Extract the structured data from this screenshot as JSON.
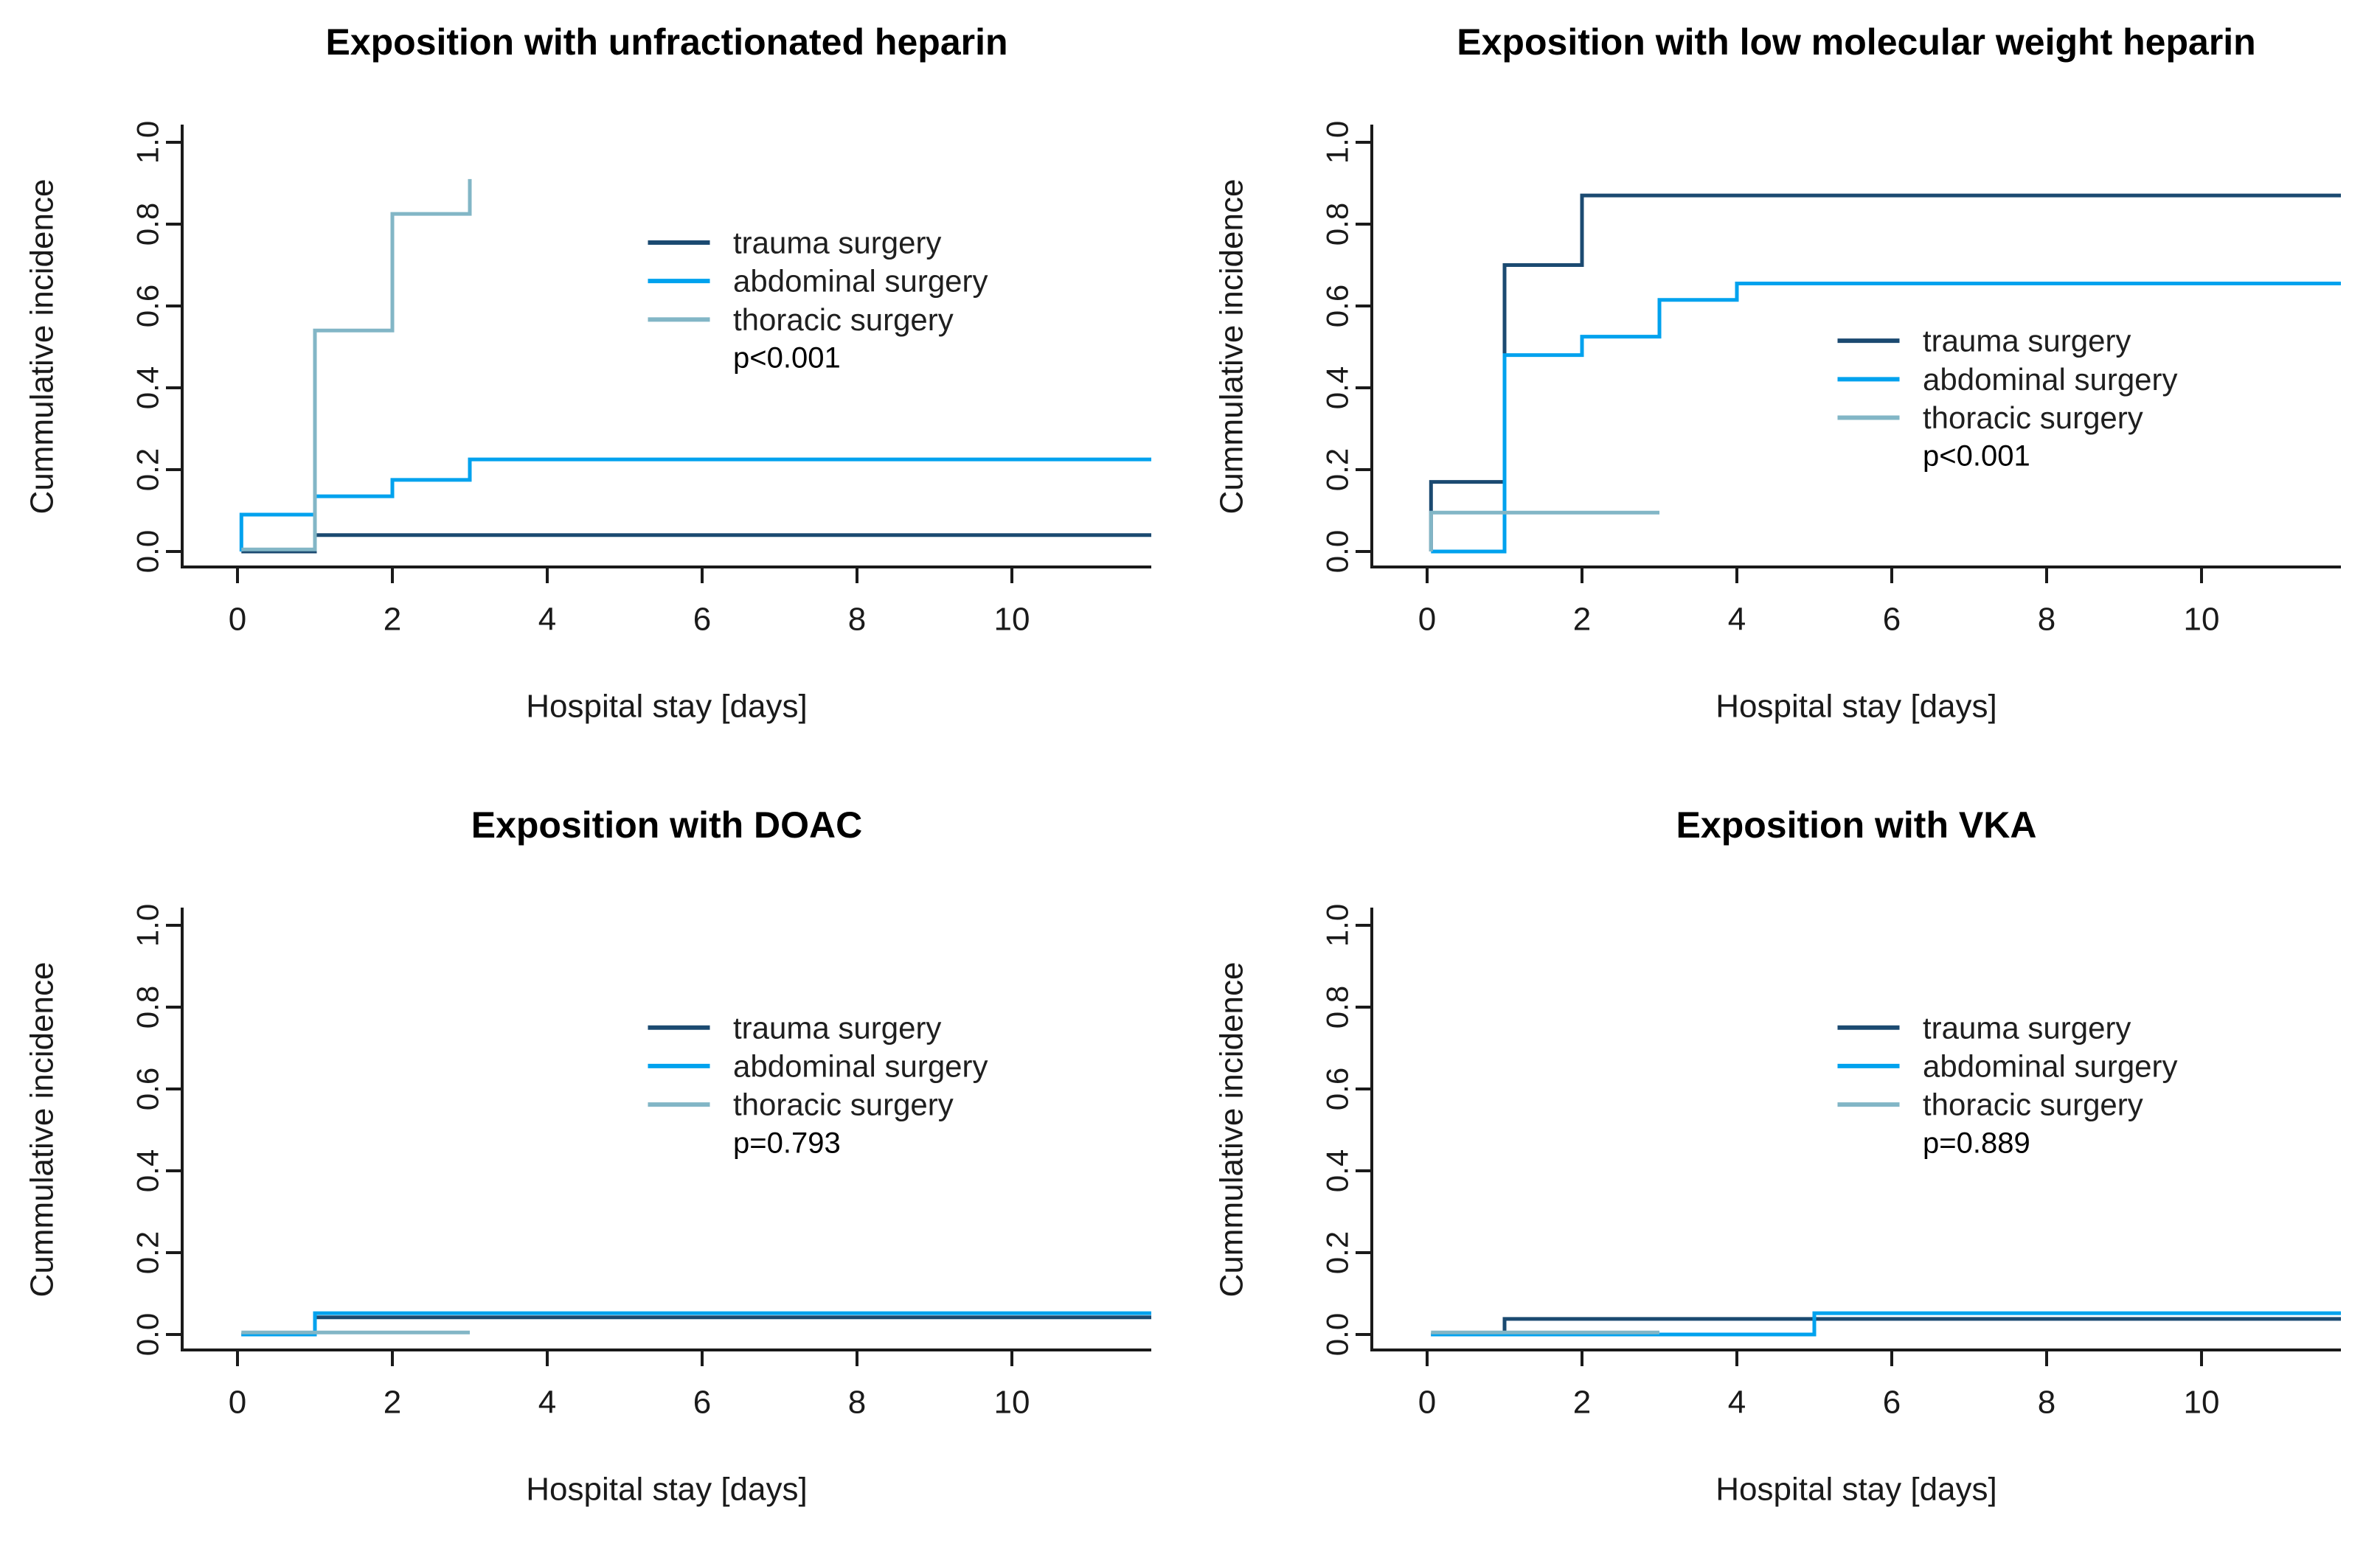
{
  "figure": {
    "background": "#ffffff",
    "axis_color": "#1a1a1a",
    "title_color": "#000000",
    "tick_label_color": "#1a1a1a",
    "p_value_color": "#000000",
    "x_tick_labels": [
      "0",
      "2",
      "4",
      "6",
      "8",
      "10"
    ],
    "y_tick_labels": [
      "0.0",
      "0.2",
      "0.4",
      "0.6",
      "0.8",
      "1.0"
    ]
  },
  "chart_data": [
    {
      "id": "ufh",
      "type": "line",
      "subtype": "step-cumulative-incidence",
      "title": "Exposition with unfractionated heparin",
      "xlabel": "Hospital stay [days]",
      "ylabel": "Cummulative incidence",
      "xlim": [
        0,
        11.8
      ],
      "ylim": [
        0,
        1.04
      ],
      "xticks": [
        0,
        2,
        4,
        6,
        8,
        10
      ],
      "yticks": [
        0,
        0.2,
        0.4,
        0.6,
        0.8,
        1.0
      ],
      "grid": false,
      "legend_position": "center-right",
      "p_value": "p<0.001",
      "legend_rows_start_value": 0.755,
      "series": [
        {
          "name": "trauma surgery",
          "color": "#1b4a71",
          "points": [
            [
              0.05,
              0
            ],
            [
              1,
              0
            ],
            [
              1,
              0.04
            ],
            [
              11.8,
              0.04
            ]
          ]
        },
        {
          "name": "abdominal surgery",
          "color": "#00a2ee",
          "points": [
            [
              0.05,
              0
            ],
            [
              0.05,
              0.09
            ],
            [
              1,
              0.09
            ],
            [
              1,
              0.135
            ],
            [
              2,
              0.135
            ],
            [
              2,
              0.175
            ],
            [
              3,
              0.175
            ],
            [
              3,
              0.225
            ],
            [
              11.8,
              0.225
            ]
          ]
        },
        {
          "name": "thoracic surgery",
          "color": "#82b6c6",
          "points": [
            [
              0.05,
              0.005
            ],
            [
              1,
              0.005
            ],
            [
              1,
              0.54
            ],
            [
              2,
              0.54
            ],
            [
              2,
              0.825
            ],
            [
              3,
              0.825
            ],
            [
              3,
              0.91
            ]
          ]
        }
      ]
    },
    {
      "id": "lmwh",
      "type": "line",
      "subtype": "step-cumulative-incidence",
      "title": "Exposition with low molecular weight heparin",
      "xlabel": "Hospital stay [days]",
      "ylabel": "Cummulative incidence",
      "xlim": [
        0,
        11.8
      ],
      "ylim": [
        0,
        1.04
      ],
      "xticks": [
        0,
        2,
        4,
        6,
        8,
        10
      ],
      "yticks": [
        0,
        0.2,
        0.4,
        0.6,
        0.8,
        1.0
      ],
      "grid": false,
      "legend_position": "center-right",
      "p_value": "p<0.001",
      "legend_rows_start_value": 0.515,
      "series": [
        {
          "name": "trauma surgery",
          "color": "#1b4a71",
          "points": [
            [
              0.05,
              0
            ],
            [
              0.05,
              0.17
            ],
            [
              1,
              0.17
            ],
            [
              1,
              0.7
            ],
            [
              2,
              0.7
            ],
            [
              2,
              0.87
            ],
            [
              11.8,
              0.87
            ]
          ]
        },
        {
          "name": "abdominal surgery",
          "color": "#00a2ee",
          "points": [
            [
              0.05,
              0
            ],
            [
              1,
              0
            ],
            [
              1,
              0.48
            ],
            [
              2,
              0.48
            ],
            [
              2,
              0.525
            ],
            [
              3,
              0.525
            ],
            [
              3,
              0.615
            ],
            [
              4,
              0.615
            ],
            [
              4,
              0.655
            ],
            [
              11.8,
              0.655
            ]
          ]
        },
        {
          "name": "thoracic surgery",
          "color": "#82b6c6",
          "points": [
            [
              0.05,
              0
            ],
            [
              0.05,
              0.095
            ],
            [
              3,
              0.095
            ]
          ]
        }
      ]
    },
    {
      "id": "doac",
      "type": "line",
      "subtype": "step-cumulative-incidence",
      "title": "Exposition with DOAC",
      "xlabel": "Hospital stay [days]",
      "ylabel": "Cummulative incidence",
      "xlim": [
        0,
        11.8
      ],
      "ylim": [
        0,
        1.04
      ],
      "xticks": [
        0,
        2,
        4,
        6,
        8,
        10
      ],
      "yticks": [
        0,
        0.2,
        0.4,
        0.6,
        0.8,
        1.0
      ],
      "grid": false,
      "legend_position": "center-right",
      "p_value": "p=0.793",
      "legend_rows_start_value": 0.75,
      "series": [
        {
          "name": "trauma surgery",
          "color": "#1b4a71",
          "points": [
            [
              0.05,
              0
            ],
            [
              1,
              0
            ],
            [
              1,
              0.042
            ],
            [
              11.8,
              0.042
            ]
          ]
        },
        {
          "name": "abdominal surgery",
          "color": "#00a2ee",
          "points": [
            [
              0.05,
              0
            ],
            [
              1,
              0
            ],
            [
              1,
              0.052
            ],
            [
              11.8,
              0.052
            ]
          ]
        },
        {
          "name": "thoracic surgery",
          "color": "#82b6c6",
          "points": [
            [
              0.05,
              0.005
            ],
            [
              3,
              0.005
            ]
          ]
        }
      ]
    },
    {
      "id": "vka",
      "type": "line",
      "subtype": "step-cumulative-incidence",
      "title": "Exposition with VKA",
      "xlabel": "Hospital stay [days]",
      "ylabel": "Cummulative incidence",
      "xlim": [
        0,
        11.8
      ],
      "ylim": [
        0,
        1.04
      ],
      "xticks": [
        0,
        2,
        4,
        6,
        8,
        10
      ],
      "yticks": [
        0,
        0.2,
        0.4,
        0.6,
        0.8,
        1.0
      ],
      "grid": false,
      "legend_position": "center-right",
      "p_value": "p=0.889",
      "legend_rows_start_value": 0.75,
      "series": [
        {
          "name": "trauma surgery",
          "color": "#1b4a71",
          "points": [
            [
              0.05,
              0
            ],
            [
              1,
              0
            ],
            [
              1,
              0.038
            ],
            [
              11.8,
              0.038
            ]
          ]
        },
        {
          "name": "abdominal surgery",
          "color": "#00a2ee",
          "points": [
            [
              0.05,
              0
            ],
            [
              5,
              0
            ],
            [
              5,
              0.052
            ],
            [
              11.8,
              0.052
            ]
          ]
        },
        {
          "name": "thoracic surgery",
          "color": "#82b6c6",
          "points": [
            [
              0.05,
              0.005
            ],
            [
              3,
              0.005
            ]
          ]
        }
      ]
    }
  ]
}
